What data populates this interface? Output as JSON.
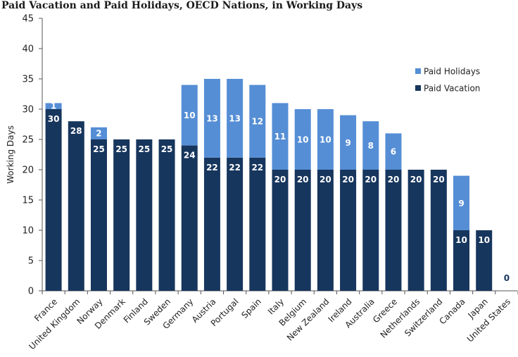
{
  "chart_data": {
    "type": "bar",
    "stacked": true,
    "title": "Paid Vacation and Paid Holidays, OECD Nations, in Working Days",
    "xlabel": "",
    "ylabel": "Working Days",
    "ylim": [
      0,
      45
    ],
    "yticks": [
      0,
      5,
      10,
      15,
      20,
      25,
      30,
      35,
      40,
      45
    ],
    "grid": false,
    "legend_position": "top-right",
    "categories": [
      "France",
      "United Kingdom",
      "Norway",
      "Denmark",
      "Finland",
      "Sweden",
      "Germany",
      "Austria",
      "Portugal",
      "Spain",
      "Italy",
      "Belgium",
      "New Zealand",
      "Ireland",
      "Australia",
      "Greece",
      "Netherlands",
      "Switzerland",
      "Canada",
      "Japan",
      "United States"
    ],
    "series": [
      {
        "name": "Paid Vacation",
        "color": "#17365d",
        "values": [
          30,
          28,
          25,
          25,
          25,
          25,
          24,
          22,
          22,
          22,
          20,
          20,
          20,
          20,
          20,
          20,
          20,
          20,
          10,
          10,
          0
        ]
      },
      {
        "name": "Paid Holidays",
        "color": "#558ed5",
        "values": [
          1,
          0,
          2,
          0,
          0,
          0,
          10,
          13,
          13,
          12,
          11,
          10,
          10,
          9,
          8,
          6,
          0,
          0,
          9,
          0,
          0
        ]
      }
    ]
  }
}
